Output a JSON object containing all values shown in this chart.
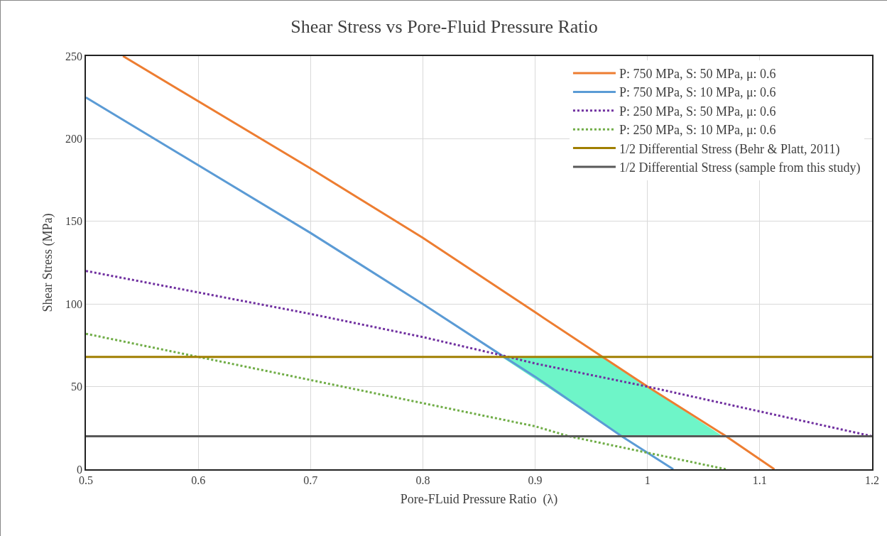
{
  "chart_data": {
    "type": "line",
    "title": "Shear Stress vs Pore-Fluid Pressure Ratio",
    "xlabel": "Pore-FLuid Pressure Ratio  (λ)",
    "ylabel": "Shear Stress (MPa)",
    "xlim": [
      0.5,
      1.2
    ],
    "xticks": [
      0.5,
      0.6,
      0.7,
      0.8,
      0.9,
      1,
      1.1,
      1.2
    ],
    "ylim": [
      0,
      250
    ],
    "yticks": [
      0,
      50,
      100,
      150,
      200,
      250
    ],
    "grid": true,
    "legend": "top right",
    "marker": "none",
    "series": [
      {
        "type": "area",
        "color": "#6ef5c8",
        "x": [
          0.87,
          0.96,
          1.067,
          0.977
        ],
        "values": [
          68,
          68,
          20,
          20
        ]
      },
      {
        "name": "P: 750 MPa, S: 50 MPa, μ: 0.6",
        "color": "#ed7d31",
        "line_style": "solid",
        "x": [
          0.533,
          0.7,
          0.8,
          0.9,
          0.96,
          1.0,
          1.07,
          1.113
        ],
        "values": [
          250,
          182,
          140,
          95,
          68,
          50,
          20,
          0
        ]
      },
      {
        "name": "P: 750 MPa, S: 10 MPa, μ: 0.6",
        "color": "#5b9bd5",
        "line_style": "solid",
        "x": [
          0.5,
          0.7,
          0.8,
          0.87,
          0.9,
          0.977,
          1.023
        ],
        "values": [
          225,
          143,
          100,
          69,
          56,
          20,
          0
        ]
      },
      {
        "name": "P: 250 MPa, S: 50 MPa, μ: 0.6",
        "color": "#7030a0",
        "line_style": "dotted",
        "x": [
          0.5,
          0.6,
          0.7,
          0.8,
          0.87,
          0.9,
          1.0,
          1.1,
          1.2
        ],
        "values": [
          120,
          107,
          94,
          80,
          69,
          64,
          50,
          35,
          20
        ]
      },
      {
        "name": "P: 250 MPa, S: 10 MPa, μ: 0.6",
        "color": "#70ad47",
        "line_style": "dotted",
        "x": [
          0.5,
          0.6,
          0.7,
          0.8,
          0.9,
          0.93,
          1.0,
          1.07
        ],
        "values": [
          82,
          68,
          54,
          40,
          26,
          20,
          10,
          0
        ]
      },
      {
        "name": "1/2 Differential Stress (Behr & Platt, 2011)",
        "color": "#a07f00",
        "line_style": "solid",
        "x": [
          0.5,
          1.2
        ],
        "values": [
          68,
          68
        ]
      },
      {
        "name": "1/2 Differential Stress (sample from this study)",
        "color": "#595959",
        "line_style": "solid",
        "x": [
          0.5,
          1.2
        ],
        "values": [
          20,
          20
        ]
      }
    ]
  }
}
